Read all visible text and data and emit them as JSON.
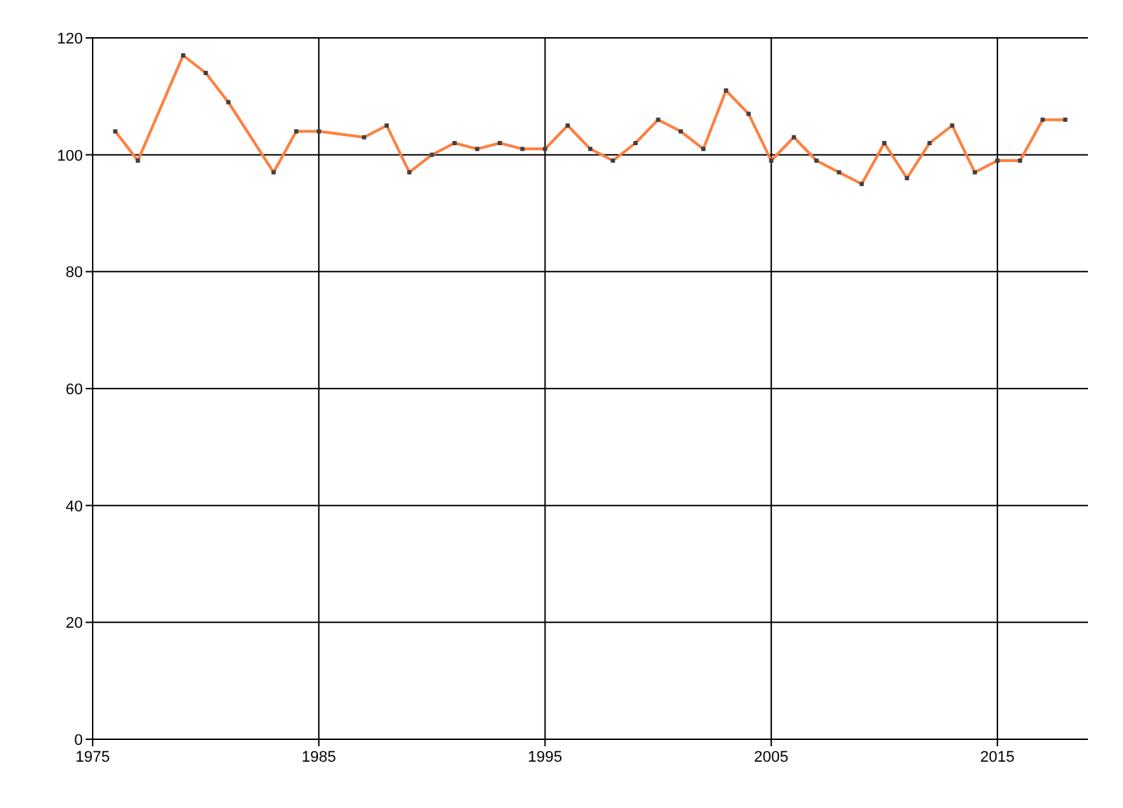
{
  "chart_data": {
    "type": "line",
    "x": [
      1976,
      1977,
      1979,
      1980,
      1981,
      1983,
      1984,
      1985,
      1987,
      1988,
      1989,
      1990,
      1991,
      1992,
      1993,
      1994,
      1995,
      1996,
      1997,
      1998,
      1999,
      2000,
      2001,
      2002,
      2003,
      2004,
      2005,
      2006,
      2007,
      2008,
      2009,
      2010,
      2011,
      2012,
      2013,
      2014,
      2015,
      2016,
      2017,
      2018
    ],
    "series": [
      {
        "color": "#ff7f3f",
        "values": [
          104,
          99,
          117,
          114,
          109,
          97,
          104,
          104,
          103,
          105,
          97,
          100,
          102,
          101,
          102,
          101,
          101,
          105,
          101,
          99,
          102,
          106,
          104,
          101,
          111,
          107,
          99,
          103,
          99,
          97,
          95,
          102,
          96,
          102,
          105,
          97,
          99,
          99,
          106,
          106
        ]
      }
    ],
    "xlim": [
      1975,
      2019
    ],
    "xticks": [
      1975,
      1985,
      1995,
      2005,
      2015
    ],
    "ylim": [
      0,
      120
    ],
    "yticks": [
      0,
      20,
      40,
      60,
      80,
      100,
      120
    ],
    "grid": true,
    "marker": "square",
    "line_style": "solid"
  }
}
